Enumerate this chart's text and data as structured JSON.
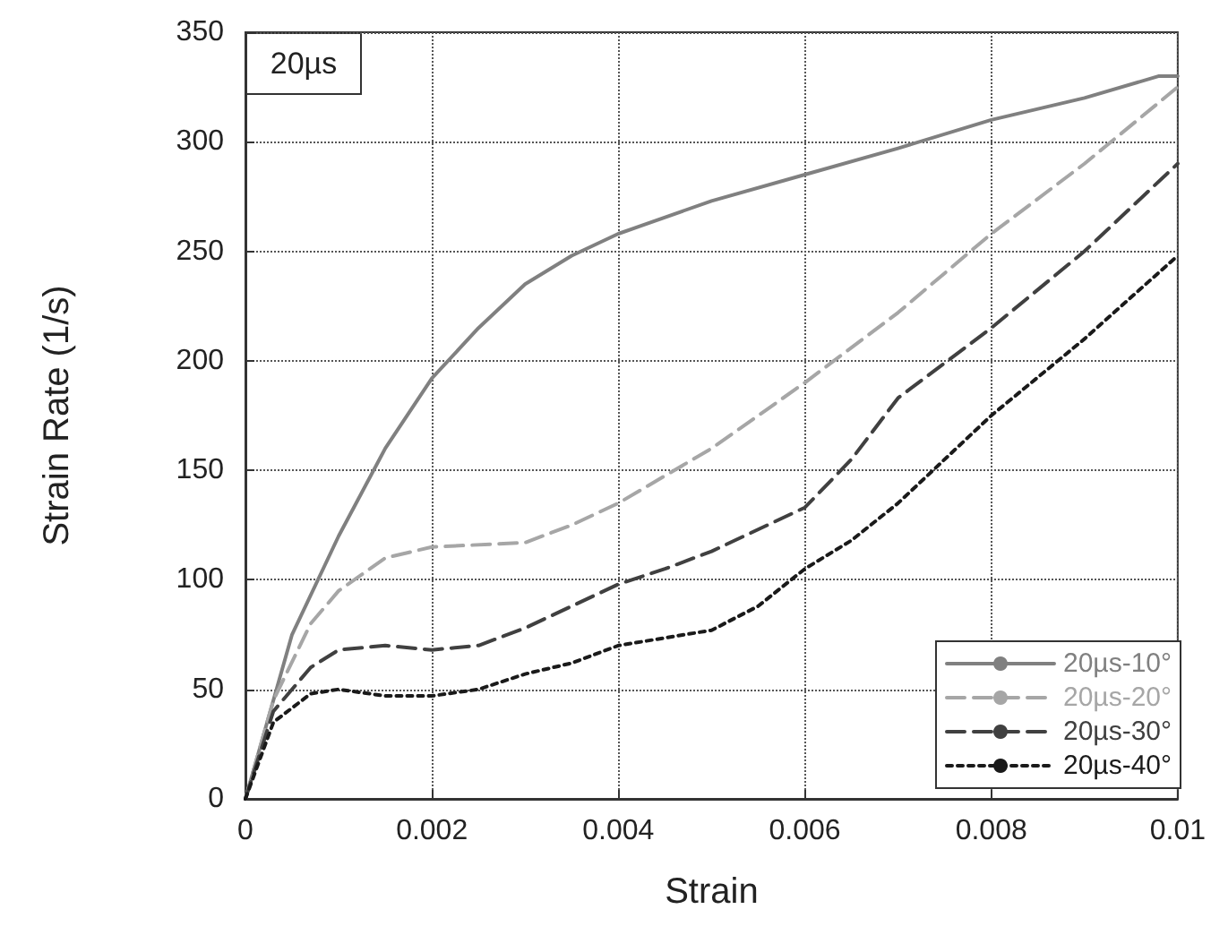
{
  "chart_data": {
    "type": "line",
    "xlabel": "Strain",
    "ylabel": "Strain Rate (1/s)",
    "annotations": [
      "20µs"
    ],
    "xlim": [
      0,
      0.01
    ],
    "xticks": [
      0,
      0.002,
      0.004,
      0.006,
      0.008,
      0.01
    ],
    "ylim": [
      0,
      350
    ],
    "yticks": [
      0,
      50,
      100,
      150,
      200,
      250,
      300,
      350
    ],
    "grid": true,
    "legend": "bottom right",
    "marker": "none",
    "series": [
      {
        "name": "20µs-10°",
        "color": "#808080",
        "line_style": "solid",
        "x": [
          0,
          0.0005,
          0.001,
          0.0015,
          0.002,
          0.0025,
          0.003,
          0.0035,
          0.004,
          0.005,
          0.006,
          0.007,
          0.008,
          0.009,
          0.0098,
          0.01
        ],
        "values": [
          0,
          75,
          120,
          160,
          192,
          215,
          235,
          248,
          258,
          273,
          285,
          297,
          310,
          320,
          330,
          330
        ]
      },
      {
        "name": "20µs-20°",
        "color": "#a6a6a6",
        "line_style": "dashed",
        "x": [
          0,
          0.0003,
          0.0007,
          0.001,
          0.0015,
          0.002,
          0.003,
          0.0035,
          0.004,
          0.005,
          0.006,
          0.007,
          0.008,
          0.009,
          0.01
        ],
        "values": [
          0,
          45,
          80,
          95,
          110,
          115,
          117,
          125,
          135,
          160,
          190,
          222,
          258,
          290,
          325
        ]
      },
      {
        "name": "20µs-30°",
        "color": "#404040",
        "line_style": "dashed",
        "x": [
          0,
          0.0003,
          0.0007,
          0.001,
          0.0015,
          0.002,
          0.0025,
          0.003,
          0.0035,
          0.004,
          0.0045,
          0.005,
          0.006,
          0.0065,
          0.007,
          0.008,
          0.009,
          0.01
        ],
        "values": [
          0,
          40,
          60,
          68,
          70,
          68,
          70,
          78,
          88,
          98,
          105,
          113,
          133,
          155,
          183,
          215,
          250,
          290
        ]
      },
      {
        "name": "20µs-40°",
        "color": "#1a1a1a",
        "line_style": "dotted",
        "x": [
          0,
          0.0003,
          0.0007,
          0.001,
          0.0015,
          0.002,
          0.0025,
          0.003,
          0.0035,
          0.004,
          0.005,
          0.0055,
          0.006,
          0.0065,
          0.007,
          0.008,
          0.009,
          0.01
        ],
        "values": [
          0,
          35,
          48,
          50,
          47,
          47,
          50,
          57,
          62,
          70,
          77,
          88,
          105,
          118,
          135,
          175,
          210,
          248
        ]
      }
    ]
  }
}
